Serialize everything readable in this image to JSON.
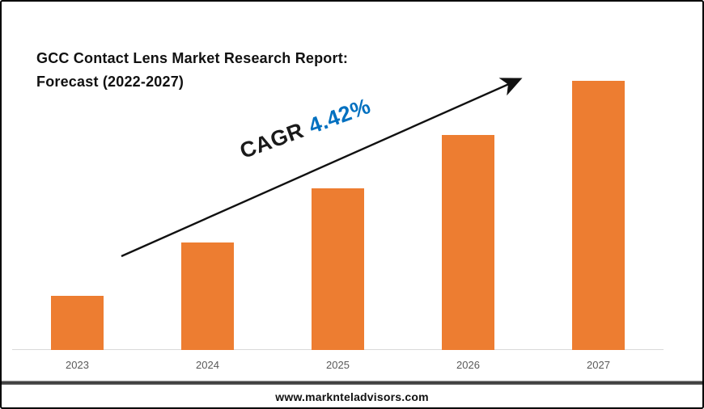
{
  "page": {
    "title_line1": "GCC Contact Lens Market Research Report:",
    "title_line2": "Forecast (2022-2027)",
    "footer": "www.marknteladvisors.com"
  },
  "chart_data": {
    "type": "bar",
    "title": "GCC Contact Lens Market Research Report: Forecast (2022-2027)",
    "categories": [
      "2023",
      "2024",
      "2025",
      "2026",
      "2027"
    ],
    "values": [
      20,
      40,
      60,
      80,
      100
    ],
    "units": "relative bar height, % of tallest bar (no value axis shown)",
    "xlabel": "",
    "ylabel": "",
    "ylim": [
      0,
      100
    ],
    "gridlines": false,
    "legend": false,
    "bar_color": "#ED7D31",
    "axis_label_color": "#595959",
    "axis_line_color": "#d9d9d9",
    "annotation": {
      "label": "CAGR",
      "value": "4.42%",
      "label_color": "#1a1a1a",
      "value_color": "#0070C0"
    },
    "trend_arrow": {
      "present": true,
      "color": "#111111",
      "direction": "up-right"
    }
  }
}
